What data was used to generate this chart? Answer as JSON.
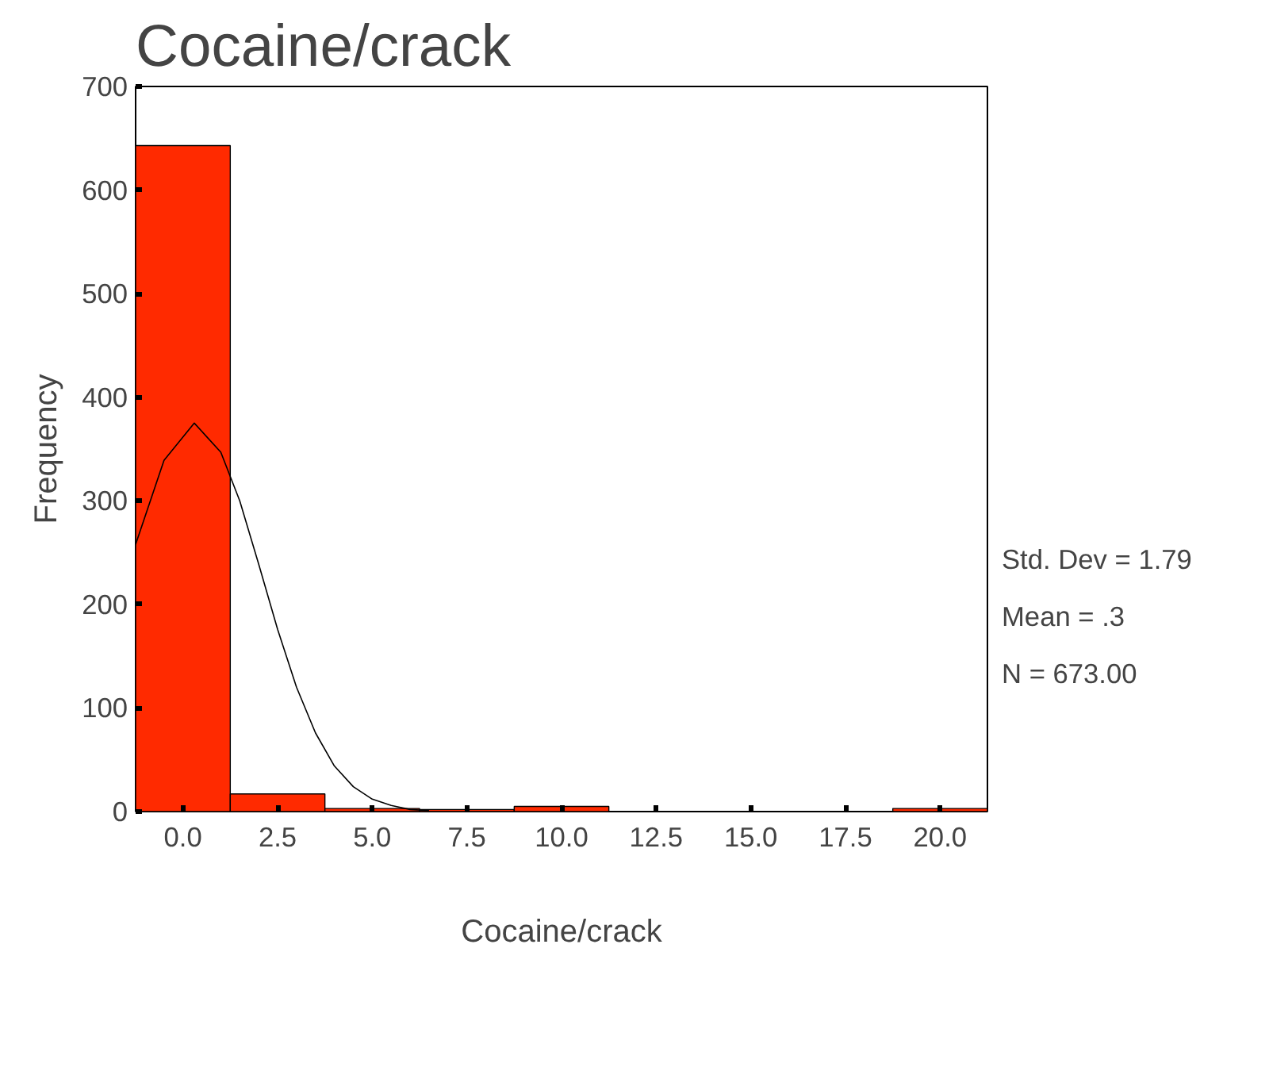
{
  "chart_data": {
    "type": "histogram",
    "title": "Cocaine/crack",
    "xlabel": "Cocaine/crack",
    "ylabel": "Frequency",
    "bins": [
      -1.25,
      1.25,
      3.75,
      6.25,
      8.75,
      11.25,
      13.75,
      16.25,
      18.75,
      21.25
    ],
    "values": [
      643,
      17,
      3,
      2,
      5,
      0,
      0,
      0,
      3
    ],
    "color": "#ff2a00",
    "series": [
      {
        "type": "line",
        "color": "#000000",
        "x": [
          -1.25,
          -0.5,
          0.3,
          1,
          1.5,
          2,
          2.5,
          3,
          3.5,
          4,
          4.5,
          5,
          5.5,
          6,
          6.5
        ],
        "values": [
          258,
          339,
          375,
          347,
          300,
          239,
          176,
          120,
          76,
          44,
          24,
          12,
          6,
          2,
          1
        ]
      }
    ],
    "xlim": [
      -1.25,
      21.25
    ],
    "ylim": [
      0,
      700
    ],
    "xticks": [
      {
        "value": 0,
        "label": "0.0"
      },
      {
        "value": 2.5,
        "label": "2.5"
      },
      {
        "value": 5,
        "label": "5.0"
      },
      {
        "value": 7.5,
        "label": "7.5"
      },
      {
        "value": 10,
        "label": "10.0"
      },
      {
        "value": 12.5,
        "label": "12.5"
      },
      {
        "value": 15,
        "label": "15.0"
      },
      {
        "value": 17.5,
        "label": "17.5"
      },
      {
        "value": 20,
        "label": "20.0"
      }
    ],
    "yticks": [
      0,
      100,
      200,
      300,
      400,
      500,
      600,
      700
    ],
    "annotations": [
      "Std. Dev = 1.79",
      "Mean = .3",
      "N = 673.00"
    ],
    "grid": false
  }
}
